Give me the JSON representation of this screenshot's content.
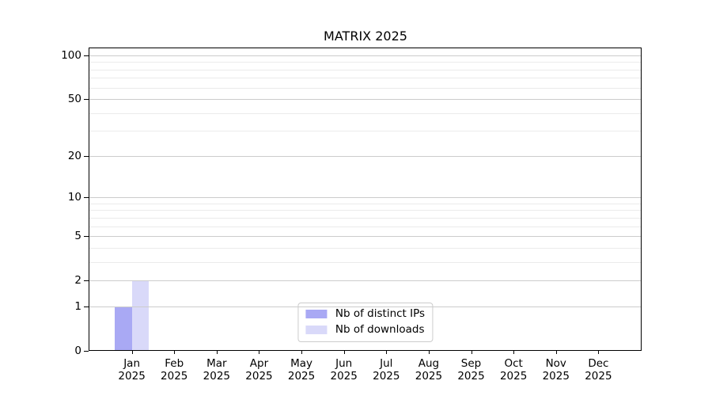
{
  "figure": {
    "title": "MATRIX 2025"
  },
  "chart_data": {
    "type": "bar",
    "title": "MATRIX 2025",
    "categories": [
      "Jan 2025",
      "Feb 2025",
      "Mar 2025",
      "Apr 2025",
      "May 2025",
      "Jun 2025",
      "Jul 2025",
      "Aug 2025",
      "Sep 2025",
      "Oct 2025",
      "Nov 2025",
      "Dec 2025"
    ],
    "series": [
      {
        "name": "Nb of distinct IPs",
        "color": "#a9a9f4",
        "values": [
          1,
          0,
          0,
          0,
          0,
          0,
          0,
          0,
          0,
          0,
          0,
          0
        ]
      },
      {
        "name": "Nb of downloads",
        "color": "#d9d9f9",
        "values": [
          2,
          0,
          0,
          0,
          0,
          0,
          0,
          0,
          0,
          0,
          0,
          0
        ]
      }
    ],
    "xlabel": "",
    "ylabel": "",
    "ylim": [
      0,
      100
    ],
    "y_scale": "log1p",
    "y_ticks_major": [
      0,
      1,
      2,
      5,
      10,
      20,
      50,
      100
    ],
    "y_ticks_minor": [
      3,
      4,
      6,
      7,
      8,
      9,
      30,
      40,
      60,
      70,
      80,
      90
    ],
    "grid": "horizontal major+minor",
    "legend_position": "lower center"
  },
  "colors": {
    "major_grid": "#cccccc",
    "minor_grid": "#ebebeb",
    "axis": "#000000",
    "text": "#000000",
    "legend_border": "#cccccc",
    "background": "#ffffff"
  }
}
